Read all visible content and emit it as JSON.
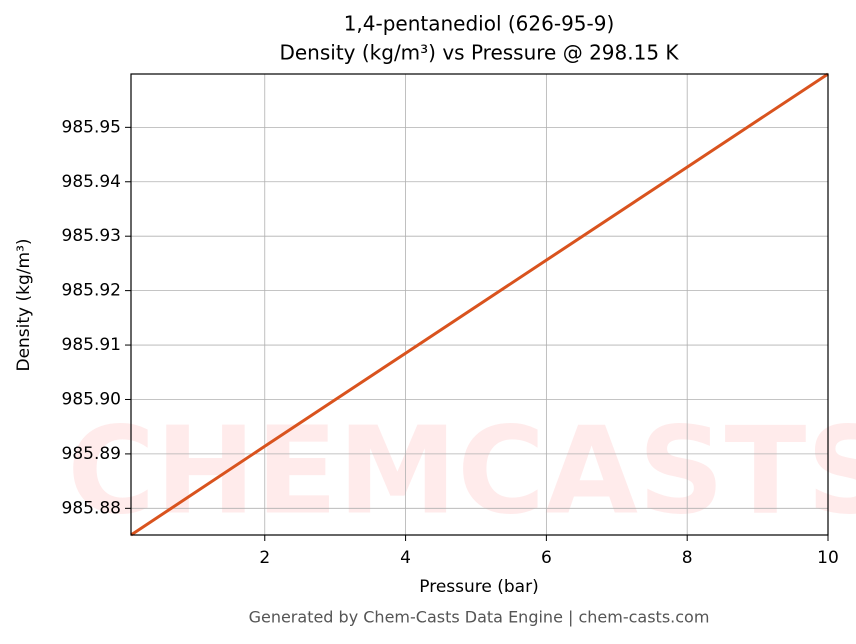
{
  "chart_data": {
    "type": "line",
    "title": "1,4-pentanediol (626-95-9)",
    "subtitle": "Density (kg/m³) vs Pressure @ 298.15 K",
    "x_label": "Pressure (bar)",
    "y_label": "Density (kg/m³)",
    "footer": "Generated by Chem-Casts Data Engine | chem-casts.com",
    "watermark": "CHEMCASTS",
    "x": [
      0.1,
      2,
      4,
      6,
      8,
      10
    ],
    "series": [
      {
        "name": "Density",
        "color": "#d9531e",
        "values": [
          985.8751,
          985.8914,
          985.9085,
          985.9256,
          985.9427,
          985.9598
        ]
      }
    ],
    "xlim": [
      0.1,
      10
    ],
    "ylim": [
      985.8751,
      985.9598
    ],
    "xticks": [
      2,
      4,
      6,
      8,
      10
    ],
    "yticks": [
      985.88,
      985.89,
      {
        "value": 985.9,
        "label": "985.90"
      },
      985.91,
      985.92,
      985.93,
      985.94,
      985.95
    ],
    "grid": true
  }
}
